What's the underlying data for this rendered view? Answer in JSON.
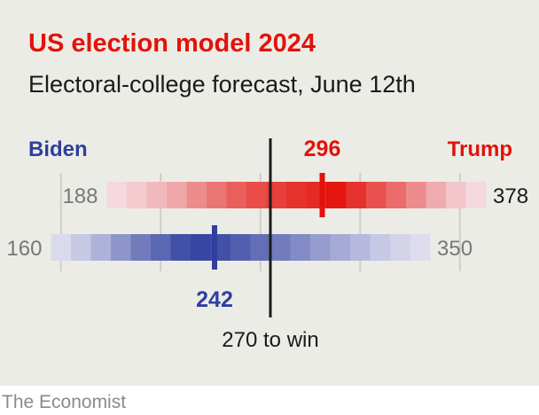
{
  "header": {
    "title": "US election model 2024",
    "subtitle": "Electoral-college forecast, June 12th"
  },
  "footer": {
    "source": "The Economist"
  },
  "colors": {
    "trump": "#e3120b",
    "biden": "#2e3f9e",
    "background": "#ecece6",
    "threshold_line": "#1a1a1a",
    "grid": "#cfcfc9"
  },
  "chart_data": {
    "type": "range-strip",
    "xlim": [
      150,
      390
    ],
    "x_gridlines": [
      165,
      215,
      265,
      315,
      365
    ],
    "threshold": {
      "value": 270,
      "label": "270 to win"
    },
    "series": [
      {
        "name": "Trump",
        "low": 188,
        "high": 378,
        "median": 296,
        "low_label": "188",
        "high_label": "378",
        "median_label": "296",
        "color": "#e3120b",
        "bins": [
          {
            "from": 188,
            "to": 198,
            "intensity": 0.12
          },
          {
            "from": 198,
            "to": 208,
            "intensity": 0.18
          },
          {
            "from": 208,
            "to": 218,
            "intensity": 0.26
          },
          {
            "from": 218,
            "to": 228,
            "intensity": 0.34
          },
          {
            "from": 228,
            "to": 238,
            "intensity": 0.46
          },
          {
            "from": 238,
            "to": 248,
            "intensity": 0.56
          },
          {
            "from": 248,
            "to": 258,
            "intensity": 0.66
          },
          {
            "from": 258,
            "to": 268,
            "intensity": 0.74
          },
          {
            "from": 268,
            "to": 278,
            "intensity": 0.8
          },
          {
            "from": 278,
            "to": 288,
            "intensity": 0.86
          },
          {
            "from": 288,
            "to": 298,
            "intensity": 0.9
          },
          {
            "from": 298,
            "to": 308,
            "intensity": 0.98
          },
          {
            "from": 308,
            "to": 318,
            "intensity": 0.86
          },
          {
            "from": 318,
            "to": 328,
            "intensity": 0.72
          },
          {
            "from": 328,
            "to": 338,
            "intensity": 0.6
          },
          {
            "from": 338,
            "to": 348,
            "intensity": 0.46
          },
          {
            "from": 348,
            "to": 358,
            "intensity": 0.32
          },
          {
            "from": 358,
            "to": 368,
            "intensity": 0.2
          },
          {
            "from": 368,
            "to": 378,
            "intensity": 0.12
          }
        ]
      },
      {
        "name": "Biden",
        "low": 160,
        "high": 350,
        "median": 242,
        "low_label": "160",
        "high_label": "350",
        "median_label": "242",
        "color": "#2e3f9e",
        "bins": [
          {
            "from": 160,
            "to": 170,
            "intensity": 0.14
          },
          {
            "from": 170,
            "to": 180,
            "intensity": 0.24
          },
          {
            "from": 180,
            "to": 190,
            "intensity": 0.36
          },
          {
            "from": 190,
            "to": 200,
            "intensity": 0.52
          },
          {
            "from": 200,
            "to": 210,
            "intensity": 0.66
          },
          {
            "from": 210,
            "to": 220,
            "intensity": 0.78
          },
          {
            "from": 220,
            "to": 230,
            "intensity": 0.9
          },
          {
            "from": 230,
            "to": 240,
            "intensity": 0.96
          },
          {
            "from": 240,
            "to": 250,
            "intensity": 0.9
          },
          {
            "from": 250,
            "to": 260,
            "intensity": 0.82
          },
          {
            "from": 260,
            "to": 270,
            "intensity": 0.74
          },
          {
            "from": 270,
            "to": 280,
            "intensity": 0.66
          },
          {
            "from": 280,
            "to": 290,
            "intensity": 0.58
          },
          {
            "from": 290,
            "to": 300,
            "intensity": 0.48
          },
          {
            "from": 300,
            "to": 310,
            "intensity": 0.4
          },
          {
            "from": 310,
            "to": 320,
            "intensity": 0.32
          },
          {
            "from": 320,
            "to": 330,
            "intensity": 0.24
          },
          {
            "from": 330,
            "to": 340,
            "intensity": 0.18
          },
          {
            "from": 340,
            "to": 350,
            "intensity": 0.12
          }
        ]
      }
    ]
  }
}
